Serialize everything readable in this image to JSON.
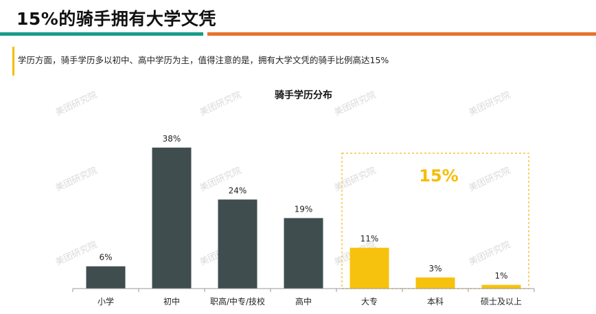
{
  "page": {
    "title": "15%的骑手拥有大学文凭",
    "summary": "学历方面，骑手学历多以初中、高中学历为主，值得注意的是，拥有大学文凭的骑手比例高达15%",
    "watermark": "美团研究院"
  },
  "colors": {
    "teal": "#1a9b8a",
    "orange": "#e8722a",
    "accent_yellow": "#f5bd00",
    "bar_dark": "#3f4d4f",
    "bar_highlight": "#f7c20d",
    "highlight_box": "#f5c33b"
  },
  "chart_data": {
    "type": "bar",
    "title": "骑手学历分布",
    "categories": [
      "小学",
      "初中",
      "职高/中专/技校",
      "高中",
      "大专",
      "本科",
      "硕士及以上"
    ],
    "values": [
      6,
      38,
      24,
      19,
      11,
      3,
      1
    ],
    "value_labels": [
      "6%",
      "38%",
      "24%",
      "19%",
      "11%",
      "3%",
      "1%"
    ],
    "highlight_categories": [
      "大专",
      "本科",
      "硕士及以上"
    ],
    "highlight_total_label": "15%",
    "ylim": [
      0,
      40
    ],
    "grid": false,
    "legend": "none"
  }
}
